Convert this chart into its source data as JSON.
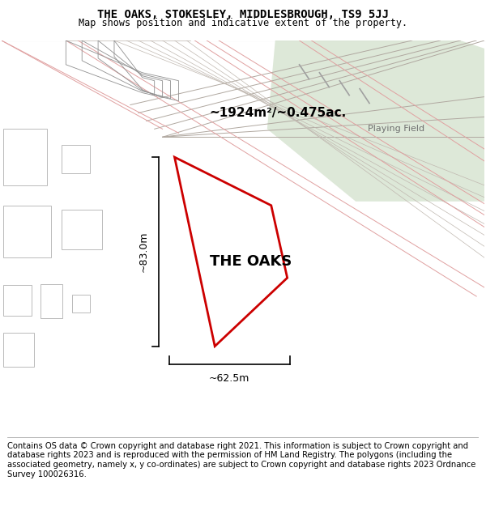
{
  "title_line1": "THE OAKS, STOKESLEY, MIDDLESBROUGH, TS9 5JJ",
  "title_line2": "Map shows position and indicative extent of the property.",
  "footer_text": "Contains OS data © Crown copyright and database right 2021. This information is subject to Crown copyright and database rights 2023 and is reproduced with the permission of HM Land Registry. The polygons (including the associated geometry, namely x, y co-ordinates) are subject to Crown copyright and database rights 2023 Ordnance Survey 100026316.",
  "map_bg_beige": "#ede5dc",
  "map_bg_green": "#dde8d8",
  "road_color_gray": "#c8c0b8",
  "road_color_pink": "#e8b0b0",
  "property_color": "#cc0000",
  "property_label": "THE OAKS",
  "area_label": "~1924m²/~0.475ac.",
  "dim_h_label": "~83.0m",
  "dim_w_label": "~62.5m",
  "playing_field_label": "Playing Field",
  "title_fontsize": 10,
  "subtitle_fontsize": 9,
  "footer_fontsize": 7.2
}
